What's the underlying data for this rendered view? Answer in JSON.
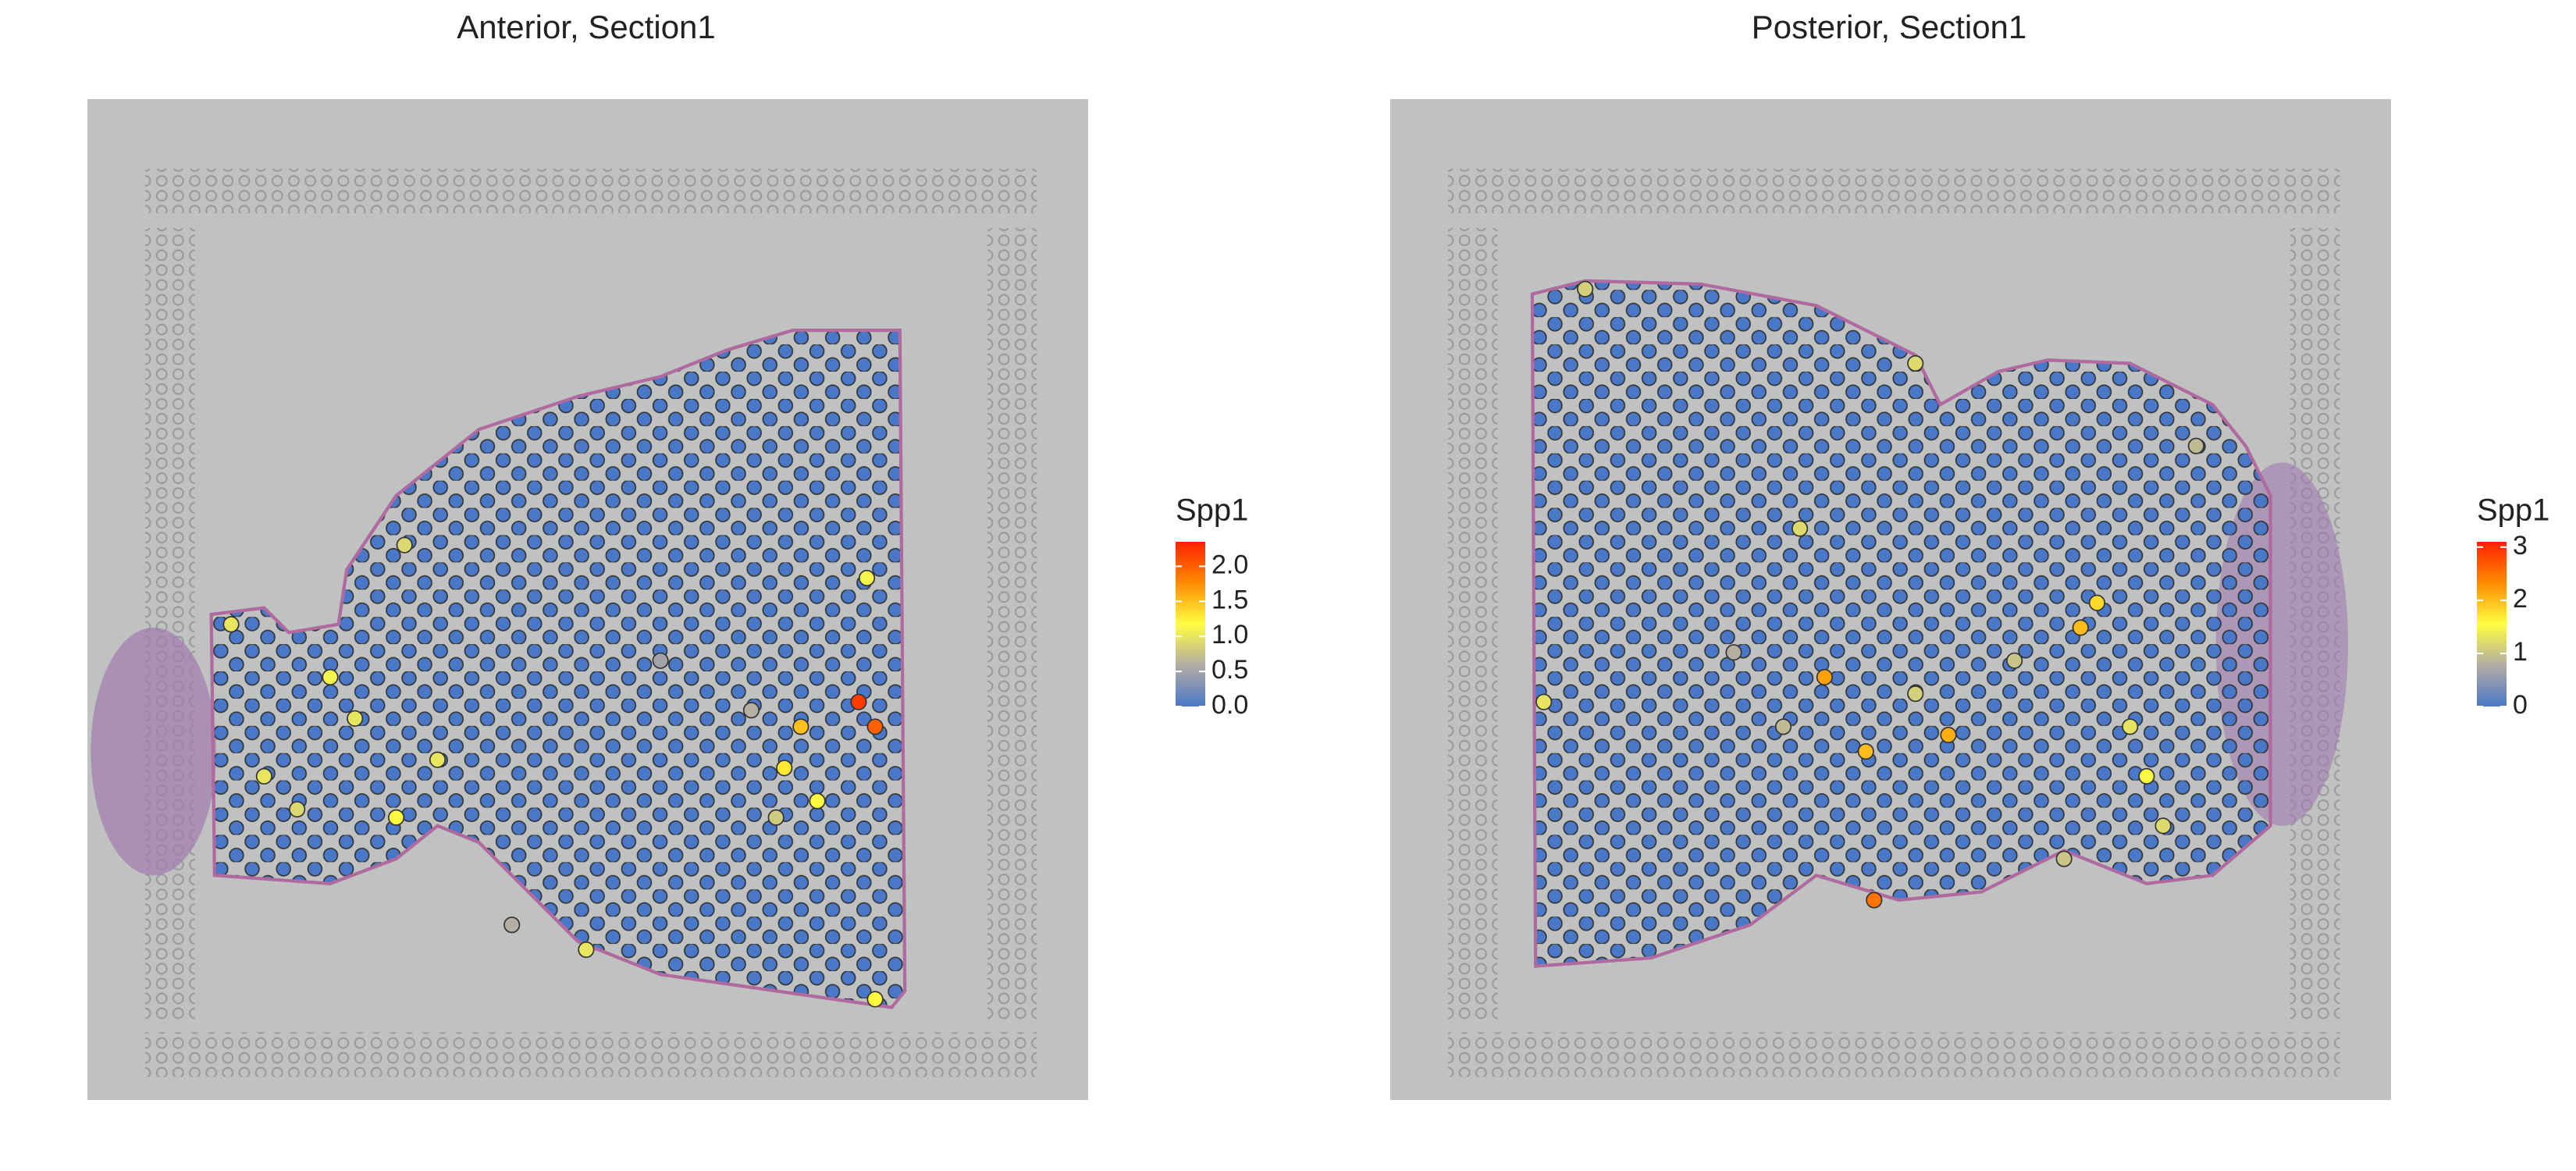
{
  "chart_data": [
    {
      "type": "scatter",
      "title": "Anterior, Section1",
      "legend_title": "Spp1",
      "colorscale": [
        "#4a78c8",
        "#b3aca4",
        "#ffff40",
        "#ff8c00",
        "#ff2000"
      ],
      "clim": [
        0,
        2.35
      ],
      "cticks": [
        {
          "value": 0,
          "label": "0.0"
        },
        0.5,
        {
          "value": 1,
          "label": "1.0"
        },
        1.5,
        {
          "value": 2,
          "label": "2.0"
        }
      ],
      "xlim": [
        0,
        606
      ],
      "ylim": [
        0,
        606
      ],
      "x": [
        467,
        477,
        432,
        422,
        442,
        147,
        162,
        212,
        127,
        417,
        192,
        472,
        87,
        257,
        347,
        402,
        187,
        107,
        477,
        302
      ],
      "y": [
        365,
        380,
        380,
        405,
        425,
        350,
        375,
        400,
        430,
        435,
        270,
        290,
        318,
        500,
        340,
        370,
        435,
        410,
        545,
        515
      ],
      "values": [
        2.2,
        2.0,
        1.5,
        1.3,
        1.2,
        1.1,
        1.0,
        1.0,
        0.9,
        0.8,
        0.9,
        1.1,
        1.0,
        0.6,
        0.5,
        0.6,
        1.2,
        1.0,
        1.2,
        1.0
      ]
    },
    {
      "type": "scatter",
      "title": "Posterior, Section1",
      "legend_title": "Spp1",
      "colorscale": [
        "#4a78c8",
        "#b3aca4",
        "#ffff40",
        "#ff8c00",
        "#ff2000"
      ],
      "clim": [
        0,
        3.1
      ],
      "cticks": [
        0,
        1,
        2,
        3
      ],
      "xlim": [
        0,
        606
      ],
      "ylim": [
        0,
        606
      ],
      "x": [
        263,
        293,
        288,
        338,
        418,
        428,
        448,
        458,
        248,
        318,
        93,
        378,
        468,
        208,
        488,
        238,
        408,
        318,
        118
      ],
      "y": [
        350,
        485,
        395,
        385,
        320,
        305,
        380,
        410,
        260,
        360,
        365,
        340,
        440,
        335,
        210,
        380,
        460,
        160,
        115
      ],
      "values": [
        2.2,
        2.5,
        2.0,
        2.1,
        2.0,
        1.8,
        1.3,
        1.5,
        1.2,
        1.1,
        1.3,
        1.0,
        1.2,
        0.8,
        0.9,
        0.9,
        1.0,
        1.2,
        1.1
      ]
    }
  ]
}
